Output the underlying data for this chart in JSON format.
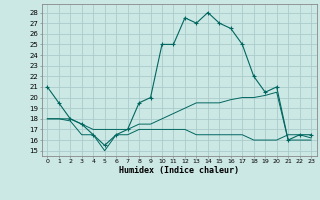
{
  "xlabel": "Humidex (Indice chaleur)",
  "bg_color": "#cce8e4",
  "grid_color": "#aacccc",
  "line_color": "#006660",
  "x_ticks": [
    0,
    1,
    2,
    3,
    4,
    5,
    6,
    7,
    8,
    9,
    10,
    11,
    12,
    13,
    14,
    15,
    16,
    17,
    18,
    19,
    20,
    21,
    22,
    23
  ],
  "y_ticks": [
    15,
    16,
    17,
    18,
    19,
    20,
    21,
    22,
    23,
    24,
    25,
    26,
    27,
    28
  ],
  "ylim": [
    14.5,
    28.8
  ],
  "xlim": [
    -0.5,
    23.5
  ],
  "line1_x": [
    0,
    1,
    2,
    3,
    4,
    5,
    6,
    7,
    8,
    9,
    10,
    11,
    12,
    13,
    14,
    15,
    16,
    17,
    18,
    19,
    20,
    21,
    22,
    23
  ],
  "line1_y": [
    21,
    19.5,
    18,
    17.5,
    16.5,
    15.5,
    16.5,
    17,
    19.5,
    20,
    25,
    25,
    27.5,
    27,
    28,
    27,
    26.5,
    25,
    22,
    20.5,
    21,
    16,
    16.5,
    16.5
  ],
  "line2_x": [
    0,
    1,
    2,
    3,
    4,
    5,
    6,
    7,
    8,
    9,
    10,
    11,
    12,
    13,
    14,
    15,
    16,
    17,
    18,
    19,
    20,
    21,
    22,
    23
  ],
  "line2_y": [
    18,
    18,
    18,
    17.5,
    17,
    17,
    17,
    17,
    17.5,
    17.5,
    18,
    18.5,
    19,
    19.5,
    19.5,
    19.5,
    19.8,
    20,
    20,
    20.2,
    20.5,
    16,
    16,
    16
  ],
  "line3_x": [
    0,
    1,
    2,
    3,
    4,
    5,
    6,
    7,
    8,
    9,
    10,
    11,
    12,
    13,
    14,
    15,
    16,
    17,
    18,
    19,
    20,
    21,
    22,
    23
  ],
  "line3_y": [
    18,
    18,
    17.8,
    16.5,
    16.5,
    15,
    16.5,
    16.5,
    17,
    17,
    17,
    17,
    17,
    16.5,
    16.5,
    16.5,
    16.5,
    16.5,
    16,
    16,
    16,
    16.5,
    16.5,
    16.2
  ]
}
